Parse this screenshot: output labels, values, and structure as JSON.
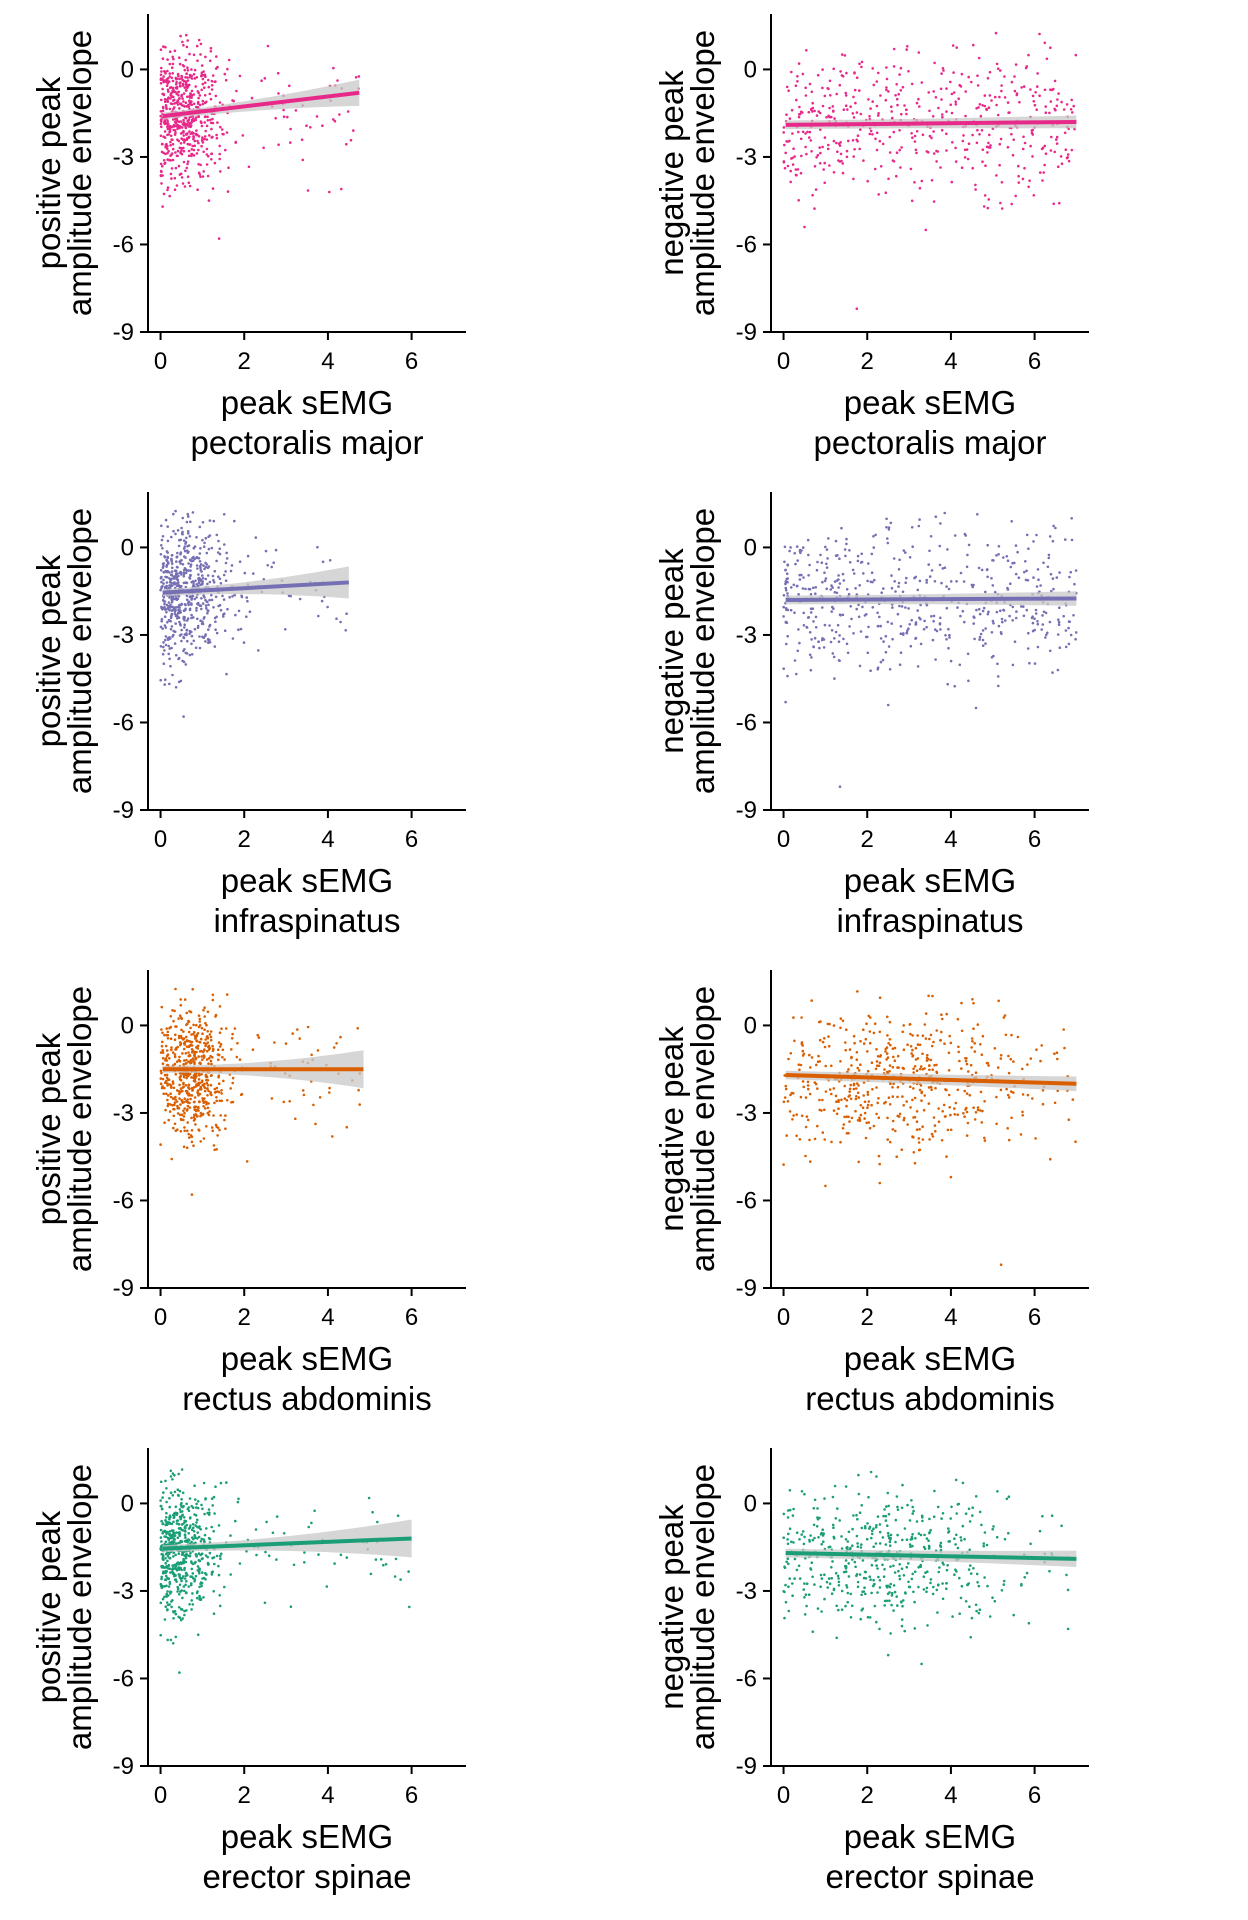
{
  "colors": {
    "pectoralis_major": "#e7298a",
    "infraspinatus": "#7570b3",
    "rectus_abdominis": "#d95f02",
    "erector_spinae": "#1b9e77",
    "confidence_band": "#c8c8c8"
  },
  "chart_data": [
    {
      "type": "scatter",
      "id": "pos-pectoralis",
      "xlabel": "peak sEMG",
      "xlabel2": "pectoralis major",
      "ylabel": "positive peak",
      "ylabel2": "amplitude envelope",
      "xlim": [
        -0.3,
        7.3
      ],
      "ylim": [
        -9,
        1.9
      ],
      "xticks": [
        "0",
        "2",
        "4",
        "6"
      ],
      "yticks": [
        "0",
        "-3",
        "-6",
        "-9"
      ],
      "x_center": 0.55,
      "x_spread": 0.45,
      "x_max": 4.8,
      "y_center": -1.55,
      "y_spread": 1.15,
      "outliers": [
        [
          1.4,
          -5.8
        ],
        [
          0.05,
          -4.7
        ],
        [
          3.4,
          -3.1
        ]
      ],
      "n_points": 650,
      "fit": {
        "x": [
          0.05,
          4.75
        ],
        "y": [
          -1.6,
          -0.8
        ]
      },
      "band_halfwidth": [
        0.12,
        0.45
      ],
      "color_key": "pectoralis_major"
    },
    {
      "type": "scatter",
      "id": "neg-pectoralis",
      "xlabel": "peak sEMG",
      "xlabel2": "pectoralis major",
      "ylabel": "negative peak",
      "ylabel2": "amplitude envelope",
      "xlim": [
        -0.3,
        7.3
      ],
      "ylim": [
        -9,
        1.9
      ],
      "xticks": [
        "0",
        "2",
        "4",
        "6"
      ],
      "yticks": [
        "0",
        "-3",
        "-6",
        "-9"
      ],
      "x_center": 3.5,
      "x_spread": 3.5,
      "x_max": 7.0,
      "uniform_x": true,
      "y_center": -1.9,
      "y_spread": 1.2,
      "outliers": [
        [
          1.75,
          -8.2
        ],
        [
          0.5,
          -5.4
        ],
        [
          3.4,
          -5.5
        ]
      ],
      "n_points": 520,
      "fit": {
        "x": [
          0.05,
          7.0
        ],
        "y": [
          -1.9,
          -1.8
        ]
      },
      "band_halfwidth": [
        0.15,
        0.22
      ],
      "color_key": "pectoralis_major"
    },
    {
      "type": "scatter",
      "id": "pos-infraspinatus",
      "xlabel": "peak sEMG",
      "xlabel2": "infraspinatus",
      "ylabel": "positive peak",
      "ylabel2": "amplitude envelope",
      "xlim": [
        -0.3,
        7.3
      ],
      "ylim": [
        -9,
        1.9
      ],
      "xticks": [
        "0",
        "2",
        "4",
        "6"
      ],
      "yticks": [
        "0",
        "-3",
        "-6",
        "-9"
      ],
      "x_center": 0.55,
      "x_spread": 0.55,
      "x_max": 4.5,
      "y_center": -1.5,
      "y_spread": 1.15,
      "outliers": [
        [
          0.55,
          -5.8
        ],
        [
          0.1,
          -4.7
        ]
      ],
      "n_points": 620,
      "fit": {
        "x": [
          0.05,
          4.5
        ],
        "y": [
          -1.55,
          -1.2
        ]
      },
      "band_halfwidth": [
        0.12,
        0.55
      ],
      "color_key": "infraspinatus"
    },
    {
      "type": "scatter",
      "id": "neg-infraspinatus",
      "xlabel": "peak sEMG",
      "xlabel2": "infraspinatus",
      "ylabel": "negative peak",
      "ylabel2": "amplitude envelope",
      "xlim": [
        -0.3,
        7.3
      ],
      "ylim": [
        -9,
        1.9
      ],
      "xticks": [
        "0",
        "2",
        "4",
        "6"
      ],
      "yticks": [
        "0",
        "-3",
        "-6",
        "-9"
      ],
      "x_center": 2.2,
      "x_spread": 2.0,
      "x_max": 7.0,
      "uniform_x": true,
      "y_center": -1.8,
      "y_spread": 1.2,
      "outliers": [
        [
          1.35,
          -8.2
        ],
        [
          0.05,
          -5.3
        ],
        [
          2.5,
          -5.4
        ],
        [
          4.6,
          -5.5
        ]
      ],
      "n_points": 560,
      "fit": {
        "x": [
          0.05,
          7.0
        ],
        "y": [
          -1.8,
          -1.75
        ]
      },
      "band_halfwidth": [
        0.15,
        0.25
      ],
      "color_key": "infraspinatus"
    },
    {
      "type": "scatter",
      "id": "pos-rectus",
      "xlabel": "peak sEMG",
      "xlabel2": "rectus abdominis",
      "ylabel": "positive peak",
      "ylabel2": "amplitude envelope",
      "xlim": [
        -0.3,
        7.3
      ],
      "ylim": [
        -9,
        1.9
      ],
      "xticks": [
        "0",
        "2",
        "4",
        "6"
      ],
      "yticks": [
        "0",
        "-3",
        "-6",
        "-9"
      ],
      "x_center": 0.75,
      "x_spread": 0.4,
      "x_max": 4.9,
      "y_center": -1.6,
      "y_spread": 1.1,
      "outliers": [
        [
          0.75,
          -5.8
        ],
        [
          4.3,
          -0.4
        ]
      ],
      "n_points": 620,
      "fit": {
        "x": [
          0.05,
          4.85
        ],
        "y": [
          -1.5,
          -1.5
        ]
      },
      "band_halfwidth": [
        0.12,
        0.65
      ],
      "color_key": "rectus_abdominis"
    },
    {
      "type": "scatter",
      "id": "neg-rectus",
      "xlabel": "peak sEMG",
      "xlabel2": "rectus abdominis",
      "ylabel": "negative peak",
      "ylabel2": "amplitude envelope",
      "xlim": [
        -0.3,
        7.3
      ],
      "ylim": [
        -9,
        1.9
      ],
      "xticks": [
        "0",
        "2",
        "4",
        "6"
      ],
      "yticks": [
        "0",
        "-3",
        "-6",
        "-9"
      ],
      "x_center": 2.6,
      "x_spread": 1.6,
      "x_max": 7.0,
      "uniform_x": false,
      "y_center": -1.9,
      "y_spread": 1.15,
      "outliers": [
        [
          5.2,
          -8.2
        ],
        [
          2.3,
          -5.4
        ],
        [
          4.0,
          -5.2
        ],
        [
          1.0,
          -5.5
        ]
      ],
      "n_points": 560,
      "fit": {
        "x": [
          0.05,
          7.0
        ],
        "y": [
          -1.7,
          -2.0
        ]
      },
      "band_halfwidth": [
        0.15,
        0.25
      ],
      "color_key": "rectus_abdominis"
    },
    {
      "type": "scatter",
      "id": "pos-erector",
      "xlabel": "peak sEMG",
      "xlabel2": "erector spinae",
      "ylabel": "positive peak",
      "ylabel2": "amplitude envelope",
      "xlim": [
        -0.3,
        7.3
      ],
      "ylim": [
        -9,
        1.9
      ],
      "xticks": [
        "0",
        "2",
        "4",
        "6"
      ],
      "yticks": [
        "0",
        "-3",
        "-6",
        "-9"
      ],
      "x_center": 0.45,
      "x_spread": 0.45,
      "x_max": 6.0,
      "y_center": -1.6,
      "y_spread": 1.1,
      "outliers": [
        [
          0.45,
          -5.8
        ],
        [
          0.9,
          -4.5
        ]
      ],
      "n_points": 620,
      "fit": {
        "x": [
          0.05,
          6.0
        ],
        "y": [
          -1.55,
          -1.2
        ]
      },
      "band_halfwidth": [
        0.12,
        0.65
      ],
      "color_key": "erector_spinae"
    },
    {
      "type": "scatter",
      "id": "neg-erector",
      "xlabel": "peak sEMG",
      "xlabel2": "erector spinae",
      "ylabel": "negative peak",
      "ylabel2": "amplitude envelope",
      "xlim": [
        -0.3,
        7.3
      ],
      "ylim": [
        -9,
        1.9
      ],
      "xticks": [
        "0",
        "2",
        "4",
        "6"
      ],
      "yticks": [
        "0",
        "-3",
        "-6",
        "-9"
      ],
      "x_center": 2.3,
      "x_spread": 1.6,
      "x_max": 7.0,
      "uniform_x": false,
      "y_center": -1.8,
      "y_spread": 1.15,
      "outliers": [
        [
          3.3,
          -5.5
        ],
        [
          2.5,
          -5.2
        ],
        [
          6.8,
          -4.3
        ]
      ],
      "n_points": 540,
      "fit": {
        "x": [
          0.05,
          7.0
        ],
        "y": [
          -1.7,
          -1.9
        ]
      },
      "band_halfwidth": [
        0.15,
        0.28
      ],
      "color_key": "erector_spinae"
    }
  ]
}
